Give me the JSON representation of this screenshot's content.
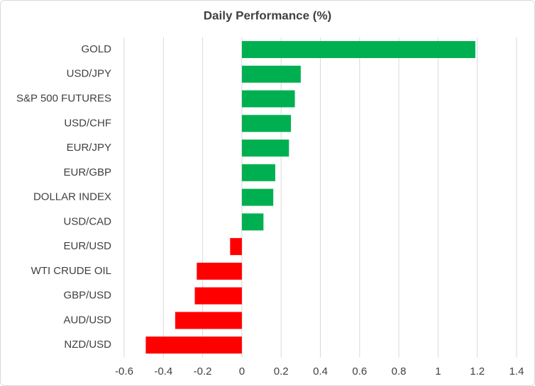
{
  "chart_data": {
    "type": "hbar",
    "title": "Daily Performance (%)",
    "categories": [
      "GOLD",
      "USD/JPY",
      "S&P 500 FUTURES",
      "USD/CHF",
      "EUR/JPY",
      "EUR/GBP",
      "DOLLAR INDEX",
      "USD/CAD",
      "EUR/USD",
      "WTI CRUDE OIL",
      "GBP/USD",
      "AUD/USD",
      "NZD/USD"
    ],
    "values": [
      1.19,
      0.3,
      0.27,
      0.25,
      0.24,
      0.17,
      0.16,
      0.11,
      -0.06,
      -0.23,
      -0.24,
      -0.34,
      -0.49
    ],
    "positive_color": "#00b050",
    "negative_color": "#ff0000",
    "xlim": [
      -0.6,
      1.4
    ],
    "xticks": [
      -0.6,
      -0.4,
      -0.2,
      0,
      0.2,
      0.4,
      0.6,
      0.8,
      1,
      1.2,
      1.4
    ],
    "grid": true
  }
}
